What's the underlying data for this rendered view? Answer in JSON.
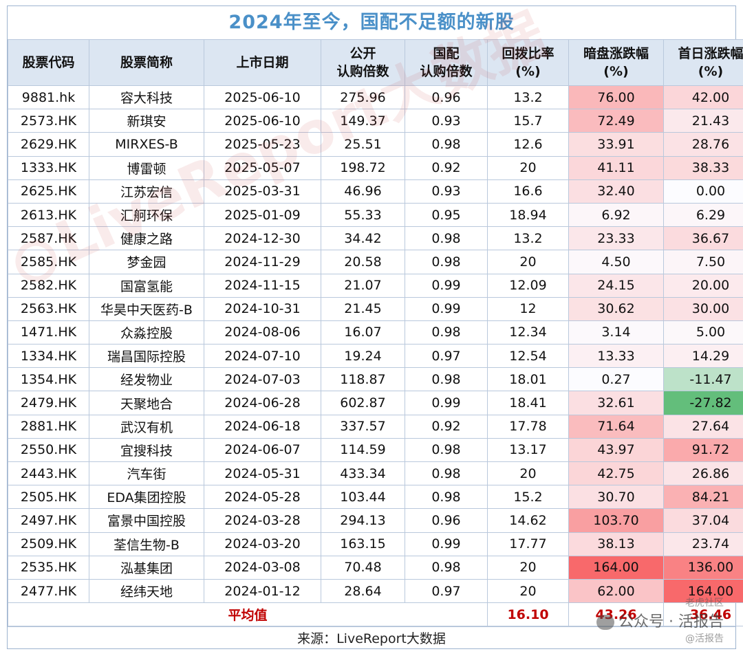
{
  "title": "2024年至今，国配不足额的新股",
  "headers": [
    [
      "股票代码"
    ],
    [
      "股票简称"
    ],
    [
      "上市日期"
    ],
    [
      "公开",
      "认购倍数"
    ],
    [
      "国配",
      "认购倍数"
    ],
    [
      "回拨比率",
      "(%)"
    ],
    [
      "暗盘涨跌幅",
      "(%)"
    ],
    [
      "首日涨跌幅",
      "(%)"
    ]
  ],
  "rows": [
    [
      "9881.hk",
      "容大科技",
      "2025-06-10",
      "275.96",
      "0.96",
      "13.2",
      "76.00",
      "42.00"
    ],
    [
      "2573.HK",
      "新琪安",
      "2025-06-10",
      "149.37",
      "0.93",
      "15.7",
      "72.49",
      "21.43"
    ],
    [
      "2629.HK",
      "MIRXES-B",
      "2025-05-23",
      "25.51",
      "0.98",
      "12.6",
      "33.91",
      "28.76"
    ],
    [
      "1333.HK",
      "博雷顿",
      "2025-05-07",
      "198.72",
      "0.92",
      "20",
      "41.11",
      "38.33"
    ],
    [
      "2625.HK",
      "江苏宏信",
      "2025-03-31",
      "46.96",
      "0.93",
      "16.6",
      "32.40",
      "0.00"
    ],
    [
      "2613.HK",
      "汇舸环保",
      "2025-01-09",
      "55.33",
      "0.95",
      "18.94",
      "6.92",
      "6.29"
    ],
    [
      "2587.HK",
      "健康之路",
      "2024-12-30",
      "34.42",
      "0.98",
      "13.2",
      "23.33",
      "36.67"
    ],
    [
      "2585.HK",
      "梦金园",
      "2024-11-29",
      "20.58",
      "0.98",
      "20",
      "4.50",
      "7.50"
    ],
    [
      "2582.HK",
      "国富氢能",
      "2024-11-15",
      "21.07",
      "0.99",
      "12.09",
      "24.15",
      "20.00"
    ],
    [
      "2563.HK",
      "华昊中天医药-B",
      "2024-10-31",
      "21.45",
      "0.99",
      "12",
      "30.62",
      "30.00"
    ],
    [
      "1471.HK",
      "众淼控股",
      "2024-08-06",
      "16.07",
      "0.98",
      "12.34",
      "3.14",
      "5.00"
    ],
    [
      "1334.HK",
      "瑞昌国际控股",
      "2024-07-10",
      "19.24",
      "0.97",
      "12.54",
      "13.33",
      "14.29"
    ],
    [
      "1354.HK",
      "经发物业",
      "2024-07-03",
      "118.87",
      "0.98",
      "18.01",
      "0.27",
      "-11.47"
    ],
    [
      "2479.HK",
      "天聚地合",
      "2024-06-28",
      "602.87",
      "0.99",
      "18.41",
      "32.61",
      "-27.82"
    ],
    [
      "2881.HK",
      "武汉有机",
      "2024-06-18",
      "337.57",
      "0.92",
      "17.78",
      "71.64",
      "27.64"
    ],
    [
      "2550.HK",
      "宜搜科技",
      "2024-06-07",
      "114.59",
      "0.98",
      "13.17",
      "43.97",
      "91.72"
    ],
    [
      "2443.HK",
      "汽车街",
      "2024-05-31",
      "433.34",
      "0.98",
      "20",
      "42.75",
      "26.86"
    ],
    [
      "2505.HK",
      "EDA集团控股",
      "2024-05-28",
      "103.44",
      "0.98",
      "15.2",
      "30.70",
      "84.21"
    ],
    [
      "2497.HK",
      "富景中国控股",
      "2024-03-28",
      "294.13",
      "0.96",
      "14.62",
      "103.70",
      "37.04"
    ],
    [
      "2509.HK",
      "荃信生物-B",
      "2024-03-20",
      "163.15",
      "0.99",
      "17.77",
      "38.13",
      "23.74"
    ],
    [
      "2535.HK",
      "泓基集团",
      "2024-03-08",
      "70.48",
      "0.98",
      "20",
      "164.00",
      "136.00"
    ],
    [
      "2477.HK",
      "经纬天地",
      "2024-01-12",
      "28.64",
      "0.97",
      "20",
      "62.00",
      "164.00"
    ]
  ],
  "average": {
    "label": "平均值",
    "huibo": "16.10",
    "anpan": "43.26",
    "shouri": "36.46"
  },
  "source": "来源：LiveReport大数据",
  "watermark": "LiveReport大数据",
  "wechat": {
    "main": "公众号 · 活报告",
    "top": "老虎社区",
    "sub": "@活报告"
  },
  "colors": {
    "header_bg": "#dce6f2",
    "title": "#4a90c8",
    "average_text": "#c00000",
    "heat_red": "#f8696b",
    "heat_green": "#63be7b"
  }
}
